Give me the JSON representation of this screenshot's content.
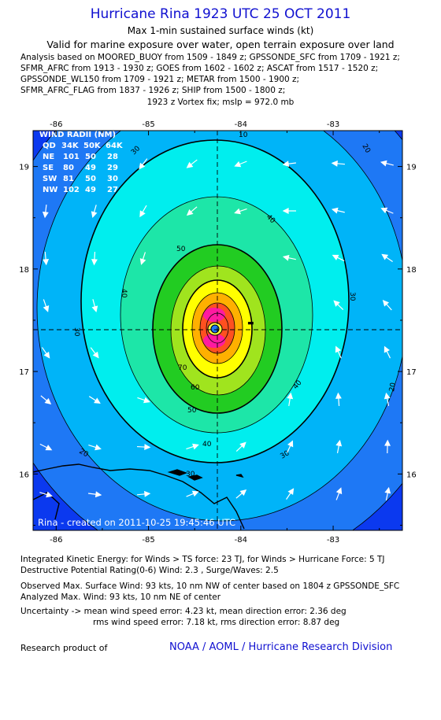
{
  "header": {
    "title": "Hurricane Rina 1923 UTC 25 OCT 2011",
    "subtitle": "Max 1-min sustained surface winds (kt)",
    "valid": "Valid for marine exposure over water, open terrain exposure over land",
    "analysis_lines": [
      "Analysis based on MOORED_BUOY from 1509 - 1849 z; GPSSONDE_SFC from 1709 - 1921 z;",
      "SFMR_AFRC from 1913 - 1930 z; GOES from 1602 - 1602 z; ASCAT from 1517 - 1520 z;",
      "GPSSONDE_WL150 from 1709 - 1921 z; METAR from 1500 - 1900 z;",
      "SFMR_AFRC_FLAG from 1837 - 1926 z; SHIP from 1500 - 1800 z;"
    ],
    "vortex": "1923 z Vortex fix; mslp = 972.0 mb"
  },
  "map": {
    "lon_labels": [
      "-86",
      "-85",
      "-84",
      "-83"
    ],
    "lat_labels": [
      "19",
      "18",
      "17",
      "16"
    ],
    "lon_values": [
      -86,
      -85,
      -84,
      -83
    ],
    "lat_values": [
      19,
      18,
      17,
      16
    ],
    "lon_range": [
      -86.25,
      -82.25
    ],
    "lat_range": [
      15.45,
      19.35
    ],
    "center": {
      "lon": -84.28,
      "lat": 17.32
    },
    "contour_labels": [
      "10",
      "20",
      "30",
      "40",
      "50",
      "60",
      "70"
    ],
    "credit": "Rina - created on 2011-10-25 19:45:46 UTC",
    "colors": {
      "outer": "#0b39ef",
      "band10": "#1e78f5",
      "band20": "#00b4f8",
      "band30": "#00eeee",
      "band40": "#1de6a8",
      "band50": "#22cc22",
      "band60": "#a0e41e",
      "band70": "#ffff00",
      "band_hi1": "#ffb000",
      "band_hi2": "#ff5020",
      "band_hi3": "#ff1aa0"
    }
  },
  "wind_radii": {
    "title": "WIND RADII (NM)",
    "header": [
      "QD",
      "34K",
      "50K",
      "64K"
    ],
    "rows": [
      [
        "NE",
        "101",
        "50",
        "28"
      ],
      [
        "SE",
        "80",
        "49",
        "29"
      ],
      [
        "SW",
        "81",
        "50",
        "30"
      ],
      [
        "NW",
        "102",
        "49",
        "27"
      ]
    ]
  },
  "footer": {
    "ike": "Integrated Kinetic Energy:  for Winds > TS force: 23 TJ,  for Winds > Hurricane Force: 5 TJ",
    "dpr": "Destructive Potential Rating(0-6)   Wind: 2.3 , Surge/Waves: 2.5",
    "observed": "Observed Max. Surface Wind: 93 kts, 10 nm NW of center based on 1804 z GPSSONDE_SFC",
    "analyzed": "Analyzed Max. Wind: 93 kts, 10 nm NE of center",
    "uncert1": "Uncertainty -> mean wind speed error: 4.23 kt,   mean direction error: 2.36 deg",
    "uncert2": "rms wind speed error: 7.18 kt,   rms direction error: 8.87 deg",
    "research": "Research product of",
    "noaa": "NOAA / AOML / Hurricane Research Division"
  }
}
